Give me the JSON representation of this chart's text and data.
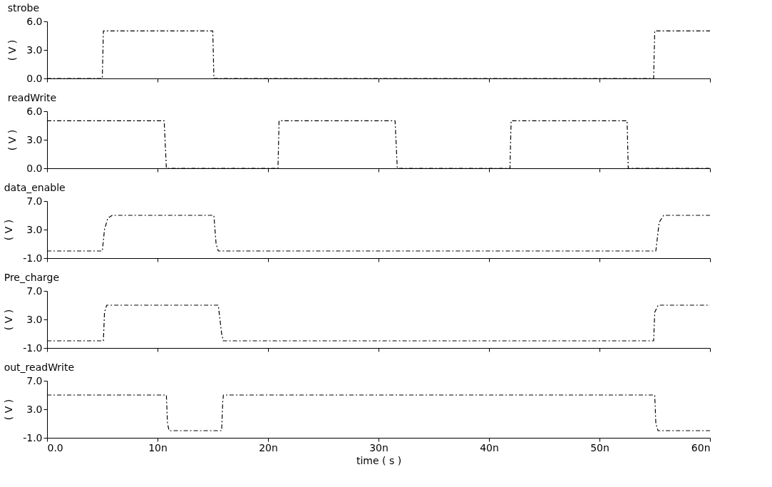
{
  "chart_data": [
    {
      "type": "line",
      "ylabel": "( V )",
      "xlim": [
        0,
        60
      ],
      "xticks": [
        {
          "value": 0,
          "label": null
        },
        {
          "value": 10,
          "label": null
        },
        {
          "value": 20,
          "label": null
        },
        {
          "value": 30,
          "label": null
        },
        {
          "value": 40,
          "label": null
        },
        {
          "value": 50,
          "label": null
        },
        {
          "value": 60,
          "label": null
        }
      ],
      "ylim": [
        0,
        6
      ],
      "yticks": [
        {
          "value": 0,
          "label": "0.0"
        },
        {
          "value": 3,
          "label": "3.0"
        },
        {
          "value": 6,
          "label": "6.0"
        }
      ],
      "tick_labels": "y",
      "grid": false,
      "line_style": "dashed",
      "series": [
        {
          "name": "strobe",
          "color": "#000000",
          "x": [
            0,
            5,
            5.1,
            15,
            15.1,
            54.9,
            55,
            60
          ],
          "values": [
            0,
            0,
            5,
            5,
            0,
            0,
            5,
            5
          ]
        }
      ]
    },
    {
      "type": "line",
      "ylabel": "( V )",
      "xlim": [
        0,
        60
      ],
      "xticks": [
        {
          "value": 0,
          "label": null
        },
        {
          "value": 10,
          "label": null
        },
        {
          "value": 20,
          "label": null
        },
        {
          "value": 30,
          "label": null
        },
        {
          "value": 40,
          "label": null
        },
        {
          "value": 50,
          "label": null
        },
        {
          "value": 60,
          "label": null
        }
      ],
      "ylim": [
        0,
        6
      ],
      "yticks": [
        {
          "value": 0,
          "label": "0.0"
        },
        {
          "value": 3,
          "label": "3.0"
        },
        {
          "value": 6,
          "label": "6.0"
        }
      ],
      "tick_labels": "y",
      "grid": false,
      "line_style": "dashed",
      "series": [
        {
          "name": "readWrite",
          "color": "#000000",
          "x": [
            0,
            10.6,
            10.8,
            20.9,
            21.0,
            31.5,
            31.7,
            41.9,
            42.0,
            52.5,
            52.6,
            60
          ],
          "values": [
            5,
            5,
            0,
            0,
            5,
            5,
            0,
            0,
            5,
            5,
            0,
            0
          ]
        }
      ]
    },
    {
      "type": "line",
      "ylabel": "( V )",
      "xlim": [
        0,
        60
      ],
      "xticks": [
        {
          "value": 0,
          "label": null
        },
        {
          "value": 10,
          "label": null
        },
        {
          "value": 20,
          "label": null
        },
        {
          "value": 30,
          "label": null
        },
        {
          "value": 40,
          "label": null
        },
        {
          "value": 50,
          "label": null
        },
        {
          "value": 60,
          "label": null
        }
      ],
      "ylim": [
        -1,
        7
      ],
      "yticks": [
        {
          "value": -1,
          "label": "-1.0"
        },
        {
          "value": 3,
          "label": "3.0"
        },
        {
          "value": 7,
          "label": "7.0"
        }
      ],
      "tick_labels": "y",
      "grid": false,
      "line_style": "dashed",
      "series": [
        {
          "name": "data_enable",
          "color": "#000000",
          "x": [
            0,
            5.0,
            5.2,
            5.5,
            5.9,
            15.1,
            15.3,
            15.5,
            55.1,
            55.4,
            55.8,
            60
          ],
          "values": [
            0,
            0,
            3,
            4.6,
            5,
            5,
            1,
            0,
            0,
            4,
            5,
            5
          ]
        }
      ]
    },
    {
      "type": "line",
      "ylabel": "( V )",
      "xlim": [
        0,
        60
      ],
      "xticks": [
        {
          "value": 0,
          "label": null
        },
        {
          "value": 10,
          "label": null
        },
        {
          "value": 20,
          "label": null
        },
        {
          "value": 30,
          "label": null
        },
        {
          "value": 40,
          "label": null
        },
        {
          "value": 50,
          "label": null
        },
        {
          "value": 60,
          "label": null
        }
      ],
      "ylim": [
        -1,
        7
      ],
      "yticks": [
        {
          "value": -1,
          "label": "-1.0"
        },
        {
          "value": 3,
          "label": "3.0"
        },
        {
          "value": 7,
          "label": "7.0"
        }
      ],
      "tick_labels": "y",
      "grid": false,
      "line_style": "dashed",
      "series": [
        {
          "name": "Pre_charge",
          "color": "#000000",
          "x": [
            0,
            5.1,
            5.2,
            5.4,
            15.5,
            15.8,
            15.95,
            54.9,
            55.0,
            55.3,
            60
          ],
          "values": [
            0,
            0,
            4,
            5,
            5,
            1,
            0,
            0,
            4,
            5,
            5
          ]
        }
      ]
    },
    {
      "type": "line",
      "xlabel": "time ( s )",
      "ylabel": "( V )",
      "xlim": [
        0,
        60
      ],
      "xticks": [
        {
          "value": 0,
          "label": "0.0"
        },
        {
          "value": 10,
          "label": "10n"
        },
        {
          "value": 20,
          "label": "20n"
        },
        {
          "value": 30,
          "label": "30n"
        },
        {
          "value": 40,
          "label": "40n"
        },
        {
          "value": 50,
          "label": "50n"
        },
        {
          "value": 60,
          "label": "60n"
        }
      ],
      "ylim": [
        -1,
        7
      ],
      "yticks": [
        {
          "value": -1,
          "label": "-1.0"
        },
        {
          "value": 3,
          "label": "3.0"
        },
        {
          "value": 7,
          "label": "7.0"
        }
      ],
      "grid": false,
      "line_style": "dashed",
      "series": [
        {
          "name": "out_readWrite",
          "color": "#000000",
          "x": [
            0,
            10.8,
            10.9,
            11.05,
            15.8,
            15.9,
            15.96,
            55.0,
            55.1,
            55.3,
            60
          ],
          "values": [
            5,
            5,
            1,
            0,
            0,
            4,
            5,
            5,
            1,
            0,
            0
          ]
        }
      ]
    }
  ]
}
